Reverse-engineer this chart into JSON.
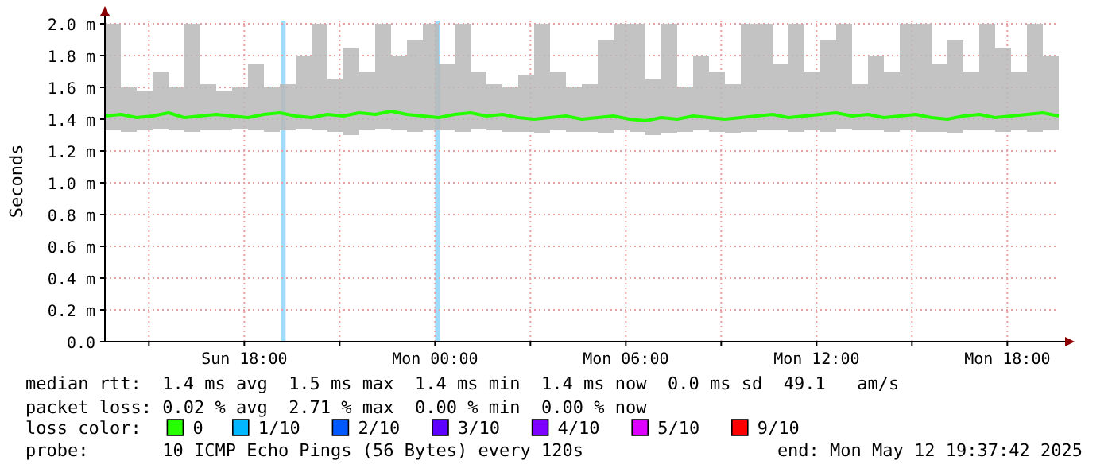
{
  "chart_data": {
    "type": "line",
    "ylabel": "Seconds",
    "xlim": [
      "2025-05-11T13:37",
      "2025-05-12T19:37"
    ],
    "ylim": [
      0,
      2.02
    ],
    "xticks": [
      {
        "value": "2025-05-11T15:00",
        "label": null
      },
      {
        "value": "2025-05-11T18:00",
        "label": "Sun 18:00"
      },
      {
        "value": "2025-05-11T21:00",
        "label": null
      },
      {
        "value": "2025-05-12T00:00",
        "label": "Mon 00:00"
      },
      {
        "value": "2025-05-12T03:00",
        "label": null
      },
      {
        "value": "2025-05-12T06:00",
        "label": "Mon 06:00"
      },
      {
        "value": "2025-05-12T09:00",
        "label": null
      },
      {
        "value": "2025-05-12T12:00",
        "label": "Mon 12:00"
      },
      {
        "value": "2025-05-12T15:00",
        "label": null
      },
      {
        "value": "2025-05-12T18:00",
        "label": "Mon 18:00"
      }
    ],
    "yticks": [
      {
        "value": 0,
        "label": "0.0"
      },
      {
        "value": 0.2,
        "label": "0.2 m"
      },
      {
        "value": 0.4,
        "label": "0.4 m"
      },
      {
        "value": 0.6,
        "label": "0.6 m"
      },
      {
        "value": 0.8,
        "label": "0.8 m"
      },
      {
        "value": 1.0,
        "label": "1.0 m"
      },
      {
        "value": 1.2,
        "label": "1.2 m"
      },
      {
        "value": 1.4,
        "label": "1.4 m"
      },
      {
        "value": 1.6,
        "label": "1.6 m"
      },
      {
        "value": 1.8,
        "label": "1.8 m"
      },
      {
        "value": 2.0,
        "label": "2.0 m"
      }
    ],
    "grid": true,
    "legend": "bottom",
    "legend_title": "loss color:",
    "line_style": "solid",
    "marker": "none",
    "x": [
      "2025-05-11T13:37",
      "2025-05-11T14:07",
      "2025-05-11T14:37",
      "2025-05-11T15:07",
      "2025-05-11T15:37",
      "2025-05-11T16:07",
      "2025-05-11T16:37",
      "2025-05-11T17:07",
      "2025-05-11T17:37",
      "2025-05-11T18:07",
      "2025-05-11T18:37",
      "2025-05-11T19:07",
      "2025-05-11T19:37",
      "2025-05-11T20:07",
      "2025-05-11T20:37",
      "2025-05-11T21:07",
      "2025-05-11T21:37",
      "2025-05-11T22:07",
      "2025-05-11T22:37",
      "2025-05-11T23:07",
      "2025-05-11T23:37",
      "2025-05-12T00:07",
      "2025-05-12T00:37",
      "2025-05-12T01:07",
      "2025-05-12T01:37",
      "2025-05-12T02:07",
      "2025-05-12T02:37",
      "2025-05-12T03:07",
      "2025-05-12T03:37",
      "2025-05-12T04:07",
      "2025-05-12T04:37",
      "2025-05-12T05:07",
      "2025-05-12T05:37",
      "2025-05-12T06:07",
      "2025-05-12T06:37",
      "2025-05-12T07:07",
      "2025-05-12T07:37",
      "2025-05-12T08:07",
      "2025-05-12T08:37",
      "2025-05-12T09:07",
      "2025-05-12T09:37",
      "2025-05-12T10:07",
      "2025-05-12T10:37",
      "2025-05-12T11:07",
      "2025-05-12T11:37",
      "2025-05-12T12:07",
      "2025-05-12T12:37",
      "2025-05-12T13:07",
      "2025-05-12T13:37",
      "2025-05-12T14:07",
      "2025-05-12T14:37",
      "2025-05-12T15:07",
      "2025-05-12T15:37",
      "2025-05-12T16:07",
      "2025-05-12T16:37",
      "2025-05-12T17:07",
      "2025-05-12T17:37",
      "2025-05-12T18:07",
      "2025-05-12T18:37",
      "2025-05-12T19:07",
      "2025-05-12T19:37"
    ],
    "series": [
      {
        "name": "0",
        "color": "#26ff00",
        "values": [
          1.42,
          1.43,
          1.41,
          1.42,
          1.44,
          1.41,
          1.42,
          1.43,
          1.42,
          1.41,
          1.43,
          1.44,
          1.42,
          1.41,
          1.43,
          1.42,
          1.44,
          1.43,
          1.45,
          1.43,
          1.42,
          1.41,
          1.43,
          1.44,
          1.42,
          1.43,
          1.41,
          1.4,
          1.41,
          1.42,
          1.4,
          1.41,
          1.42,
          1.4,
          1.39,
          1.41,
          1.4,
          1.42,
          1.41,
          1.4,
          1.41,
          1.42,
          1.43,
          1.41,
          1.42,
          1.43,
          1.44,
          1.42,
          1.43,
          1.41,
          1.42,
          1.43,
          1.41,
          1.4,
          1.42,
          1.43,
          1.41,
          1.42,
          1.43,
          1.44,
          1.42
        ],
        "lower": [
          1.33,
          1.32,
          1.33,
          1.34,
          1.33,
          1.32,
          1.33,
          1.33,
          1.34,
          1.33,
          1.32,
          1.33,
          1.34,
          1.33,
          1.32,
          1.3,
          1.33,
          1.34,
          1.33,
          1.32,
          1.33,
          1.33,
          1.32,
          1.34,
          1.33,
          1.32,
          1.32,
          1.31,
          1.33,
          1.32,
          1.32,
          1.31,
          1.33,
          1.32,
          1.3,
          1.31,
          1.32,
          1.33,
          1.32,
          1.31,
          1.32,
          1.33,
          1.33,
          1.32,
          1.33,
          1.32,
          1.34,
          1.33,
          1.33,
          1.32,
          1.33,
          1.32,
          1.32,
          1.31,
          1.33,
          1.33,
          1.32,
          1.33,
          1.32,
          1.33,
          1.32
        ],
        "upper": [
          2.0,
          1.6,
          1.58,
          1.7,
          1.6,
          2.0,
          1.62,
          1.58,
          1.6,
          1.75,
          1.6,
          1.62,
          1.8,
          2.0,
          1.65,
          1.85,
          1.7,
          2.0,
          1.8,
          1.9,
          2.0,
          1.75,
          2.0,
          1.7,
          1.62,
          1.6,
          1.68,
          2.0,
          1.7,
          1.6,
          1.62,
          1.9,
          2.0,
          2.0,
          1.65,
          2.0,
          1.6,
          1.8,
          1.7,
          1.62,
          2.0,
          2.0,
          1.75,
          2.0,
          1.7,
          1.9,
          2.0,
          1.62,
          1.8,
          1.7,
          2.0,
          2.0,
          1.75,
          1.9,
          1.7,
          2.0,
          1.85,
          1.7,
          2.0,
          1.8,
          1.65
        ]
      },
      {
        "name": "1/10",
        "color": "#00b8ff",
        "values": [
          null,
          null,
          null,
          null,
          null,
          null,
          null,
          null,
          null,
          null,
          null,
          null,
          null,
          null,
          null,
          null,
          null,
          null,
          null,
          null,
          null,
          null,
          null,
          null,
          null,
          null,
          null,
          null,
          null,
          null,
          null,
          null,
          null,
          null,
          null,
          null,
          null,
          null,
          null,
          null,
          null,
          null,
          null,
          null,
          null,
          null,
          null,
          null,
          null,
          null,
          null,
          null,
          null,
          null,
          null,
          null,
          null,
          null,
          null,
          null,
          null
        ]
      },
      {
        "name": "2/10",
        "color": "#0059ff",
        "values": [
          null,
          null,
          null,
          null,
          null,
          null,
          null,
          null,
          null,
          null,
          null,
          null,
          null,
          null,
          null,
          null,
          null,
          null,
          null,
          null,
          null,
          null,
          null,
          null,
          null,
          null,
          null,
          null,
          null,
          null,
          null,
          null,
          null,
          null,
          null,
          null,
          null,
          null,
          null,
          null,
          null,
          null,
          null,
          null,
          null,
          null,
          null,
          null,
          null,
          null,
          null,
          null,
          null,
          null,
          null,
          null,
          null,
          null,
          null,
          null,
          null
        ]
      },
      {
        "name": "3/10",
        "color": "#5e00ff",
        "values": [
          null,
          null,
          null,
          null,
          null,
          null,
          null,
          null,
          null,
          null,
          null,
          null,
          null,
          null,
          null,
          null,
          null,
          null,
          null,
          null,
          null,
          null,
          null,
          null,
          null,
          null,
          null,
          null,
          null,
          null,
          null,
          null,
          null,
          null,
          null,
          null,
          null,
          null,
          null,
          null,
          null,
          null,
          null,
          null,
          null,
          null,
          null,
          null,
          null,
          null,
          null,
          null,
          null,
          null,
          null,
          null,
          null,
          null,
          null,
          null,
          null
        ]
      },
      {
        "name": "4/10",
        "color": "#7e00ff",
        "values": [
          null,
          null,
          null,
          null,
          null,
          null,
          null,
          null,
          null,
          null,
          null,
          null,
          null,
          null,
          null,
          null,
          null,
          null,
          null,
          null,
          null,
          null,
          null,
          null,
          null,
          null,
          null,
          null,
          null,
          null,
          null,
          null,
          null,
          null,
          null,
          null,
          null,
          null,
          null,
          null,
          null,
          null,
          null,
          null,
          null,
          null,
          null,
          null,
          null,
          null,
          null,
          null,
          null,
          null,
          null,
          null,
          null,
          null,
          null,
          null,
          null
        ]
      },
      {
        "name": "5/10",
        "color": "#dd00ff",
        "values": [
          null,
          null,
          null,
          null,
          null,
          null,
          null,
          null,
          null,
          null,
          null,
          null,
          null,
          null,
          null,
          null,
          null,
          null,
          null,
          null,
          null,
          null,
          null,
          null,
          null,
          null,
          null,
          null,
          null,
          null,
          null,
          null,
          null,
          null,
          null,
          null,
          null,
          null,
          null,
          null,
          null,
          null,
          null,
          null,
          null,
          null,
          null,
          null,
          null,
          null,
          null,
          null,
          null,
          null,
          null,
          null,
          null,
          null,
          null,
          null,
          null
        ]
      },
      {
        "name": "9/10",
        "color": "#ff0000",
        "values": [
          null,
          null,
          null,
          null,
          null,
          null,
          null,
          null,
          null,
          null,
          null,
          null,
          null,
          null,
          null,
          null,
          null,
          null,
          null,
          null,
          null,
          null,
          null,
          null,
          null,
          null,
          null,
          null,
          null,
          null,
          null,
          null,
          null,
          null,
          null,
          null,
          null,
          null,
          null,
          null,
          null,
          null,
          null,
          null,
          null,
          null,
          null,
          null,
          null,
          null,
          null,
          null,
          null,
          null,
          null,
          null,
          null,
          null,
          null,
          null,
          null
        ]
      }
    ],
    "bands": [
      {
        "axis": "x",
        "from": "2025-05-11T19:10",
        "to": "2025-05-11T19:18",
        "color": "#9fdcfa"
      },
      {
        "axis": "x",
        "from": "2025-05-12T00:00",
        "to": "2025-05-12T00:10",
        "color": "#9fdcfa"
      }
    ],
    "annotations": [
      "median rtt:  1.4 ms avg  1.5 ms max  1.4 ms min  1.4 ms now  0.0 ms sd  49.1   am/s",
      "packet loss: 0.02 % avg  2.71 % max  0.00 % min  0.00 % now",
      "probe:       10 ICMP Echo Pings (56 Bytes) every 120s",
      "end: Mon May 12 19:37:42 2025"
    ]
  }
}
